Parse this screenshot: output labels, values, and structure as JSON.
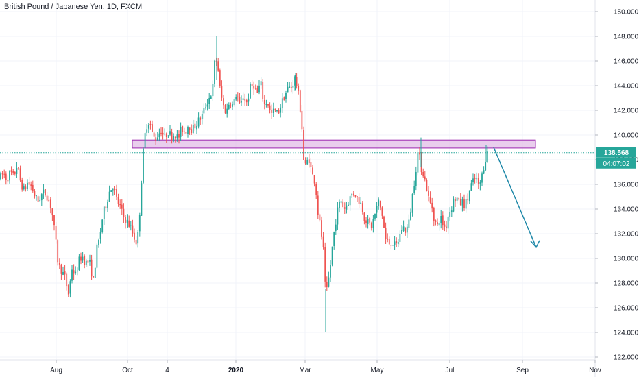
{
  "header": {
    "title": "British Pound / Japanese Yen, 1D, FXCM"
  },
  "price_badge": {
    "last": "138.568",
    "countdown": "04:07:02"
  },
  "colors": {
    "up": "#26a69a",
    "down": "#ef5350",
    "zone_fill": "#e1bee7",
    "zone_border": "#9c27b0",
    "arrow": "#1e88a8",
    "price_line": "#26a69a"
  },
  "chart_data": {
    "type": "candlestick",
    "x_ticks": [
      {
        "label": "Aug",
        "x": 82
      },
      {
        "label": "Oct",
        "x": 186
      },
      {
        "label": "4",
        "x": 244
      },
      {
        "label": "2020",
        "x": 344,
        "bold": true
      },
      {
        "label": "Mar",
        "x": 445
      },
      {
        "label": "May",
        "x": 550
      },
      {
        "label": "Jul",
        "x": 656
      },
      {
        "label": "Sep",
        "x": 762
      },
      {
        "label": "Nov",
        "x": 868
      }
    ],
    "y_ticks": [
      "150.000",
      "148.000",
      "146.000",
      "144.000",
      "142.000",
      "140.000",
      "138.000",
      "136.000",
      "134.000",
      "132.000",
      "130.000",
      "128.000",
      "126.000",
      "124.000",
      "122.000"
    ],
    "ylim": [
      121.5,
      150.8
    ],
    "last_price": 138.568,
    "resistance_zone": {
      "low": 138.95,
      "high": 139.6
    },
    "projection": {
      "from_price": 139.0,
      "to_price": 130.9
    },
    "path": [
      [
        0,
        136.5
      ],
      [
        5,
        136.9
      ],
      [
        10,
        136.4
      ],
      [
        15,
        137.0
      ],
      [
        20,
        136.6
      ],
      [
        25,
        137.6
      ],
      [
        30,
        136.2
      ],
      [
        35,
        135.5
      ],
      [
        40,
        136.1
      ],
      [
        45,
        135.9
      ],
      [
        50,
        135.2
      ],
      [
        55,
        134.6
      ],
      [
        60,
        135.1
      ],
      [
        65,
        135.4
      ],
      [
        70,
        134.9
      ],
      [
        75,
        134.1
      ],
      [
        80,
        132.0
      ],
      [
        85,
        129.5
      ],
      [
        90,
        129.0
      ],
      [
        95,
        128.4
      ],
      [
        100,
        127.1
      ],
      [
        105,
        129.2
      ],
      [
        110,
        128.6
      ],
      [
        115,
        129.8
      ],
      [
        120,
        130.2
      ],
      [
        125,
        129.6
      ],
      [
        130,
        129.8
      ],
      [
        137,
        128.0
      ],
      [
        140,
        130.5
      ],
      [
        145,
        131.6
      ],
      [
        150,
        133.5
      ],
      [
        155,
        134.5
      ],
      [
        160,
        135.5
      ],
      [
        165,
        135.9
      ],
      [
        170,
        134.8
      ],
      [
        175,
        134.2
      ],
      [
        180,
        133.4
      ],
      [
        185,
        133.0
      ],
      [
        190,
        132.6
      ],
      [
        195,
        131.8
      ],
      [
        200,
        131.2
      ],
      [
        203,
        133.0
      ],
      [
        206,
        136.0
      ],
      [
        210,
        139.5
      ],
      [
        214,
        140.8
      ],
      [
        218,
        141.2
      ],
      [
        222,
        140.1
      ],
      [
        226,
        139.6
      ],
      [
        230,
        140.0
      ],
      [
        235,
        140.4
      ],
      [
        240,
        139.8
      ],
      [
        245,
        140.3
      ],
      [
        250,
        139.9
      ],
      [
        255,
        140.1
      ],
      [
        260,
        139.7
      ],
      [
        265,
        140.6
      ],
      [
        270,
        140.2
      ],
      [
        275,
        140.9
      ],
      [
        280,
        140.4
      ],
      [
        285,
        140.8
      ],
      [
        290,
        141.2
      ],
      [
        295,
        141.6
      ],
      [
        300,
        142.4
      ],
      [
        305,
        143.0
      ],
      [
        310,
        143.6
      ],
      [
        313,
        145.8
      ],
      [
        317,
        146.2
      ],
      [
        320,
        144.0
      ],
      [
        325,
        142.5
      ],
      [
        330,
        141.8
      ],
      [
        335,
        142.8
      ],
      [
        340,
        142.3
      ],
      [
        345,
        143.5
      ],
      [
        350,
        142.2
      ],
      [
        355,
        143.2
      ],
      [
        360,
        142.6
      ],
      [
        365,
        143.8
      ],
      [
        370,
        144.1
      ],
      [
        375,
        143.3
      ],
      [
        380,
        144.3
      ],
      [
        385,
        142.4
      ],
      [
        390,
        142.8
      ],
      [
        395,
        141.6
      ],
      [
        400,
        142.0
      ],
      [
        405,
        141.7
      ],
      [
        410,
        142.5
      ],
      [
        415,
        143.2
      ],
      [
        420,
        143.8
      ],
      [
        425,
        143.9
      ],
      [
        430,
        144.6
      ],
      [
        433,
        144.0
      ],
      [
        437,
        142.6
      ],
      [
        440,
        141.0
      ],
      [
        443,
        138.0
      ],
      [
        446,
        137.4
      ],
      [
        450,
        138.3
      ],
      [
        455,
        136.8
      ],
      [
        460,
        136.2
      ],
      [
        463,
        134.0
      ],
      [
        466,
        133.0
      ],
      [
        469,
        131.8
      ],
      [
        472,
        130.5
      ],
      [
        475,
        126.8
      ],
      [
        478,
        127.8
      ],
      [
        481,
        129.0
      ],
      [
        484,
        130.6
      ],
      [
        488,
        132.5
      ],
      [
        492,
        133.8
      ],
      [
        497,
        134.8
      ],
      [
        502,
        134.0
      ],
      [
        507,
        134.5
      ],
      [
        512,
        135.1
      ],
      [
        517,
        135.4
      ],
      [
        522,
        134.8
      ],
      [
        527,
        134.4
      ],
      [
        532,
        133.2
      ],
      [
        537,
        132.9
      ],
      [
        542,
        132.6
      ],
      [
        547,
        133.6
      ],
      [
        552,
        134.6
      ],
      [
        557,
        133.7
      ],
      [
        562,
        131.6
      ],
      [
        567,
        131.2
      ],
      [
        572,
        131.4
      ],
      [
        577,
        130.9
      ],
      [
        582,
        131.6
      ],
      [
        587,
        132.6
      ],
      [
        592,
        132.2
      ],
      [
        597,
        133.0
      ],
      [
        602,
        135.3
      ],
      [
        605,
        136.5
      ],
      [
        610,
        138.8
      ],
      [
        614,
        137.4
      ],
      [
        618,
        136.8
      ],
      [
        622,
        135.8
      ],
      [
        626,
        134.6
      ],
      [
        630,
        134.2
      ],
      [
        634,
        133.0
      ],
      [
        638,
        132.6
      ],
      [
        642,
        133.4
      ],
      [
        646,
        132.8
      ],
      [
        650,
        132.4
      ],
      [
        654,
        133.6
      ],
      [
        658,
        134.0
      ],
      [
        662,
        134.8
      ],
      [
        666,
        134.9
      ],
      [
        670,
        134.4
      ],
      [
        674,
        134.6
      ],
      [
        678,
        134.3
      ],
      [
        682,
        134.8
      ],
      [
        686,
        135.8
      ],
      [
        690,
        136.2
      ],
      [
        694,
        136.6
      ],
      [
        698,
        135.8
      ],
      [
        702,
        136.4
      ],
      [
        706,
        137.6
      ],
      [
        710,
        138.5
      ],
      [
        712,
        138.57
      ]
    ]
  }
}
